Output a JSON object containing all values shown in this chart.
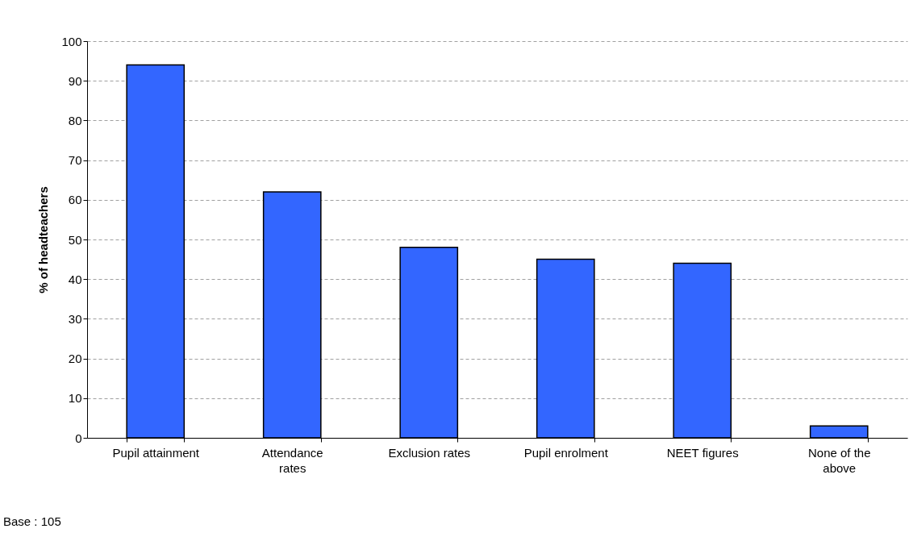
{
  "chart_data": {
    "type": "bar",
    "ylabel": "% of headteachers",
    "categories": [
      "Pupil attainment",
      "Attendance rates",
      "Exclusion rates",
      "Pupil enrolment",
      "NEET figures",
      "None of the above"
    ],
    "values": [
      94,
      62,
      48,
      45,
      44,
      3
    ],
    "color": "#3366ff",
    "ylim": [
      0,
      100
    ],
    "yticks": [
      0,
      10,
      20,
      30,
      40,
      50,
      60,
      70,
      80,
      90,
      100
    ],
    "grid": "y",
    "annotations": [
      "Base : 105"
    ]
  }
}
